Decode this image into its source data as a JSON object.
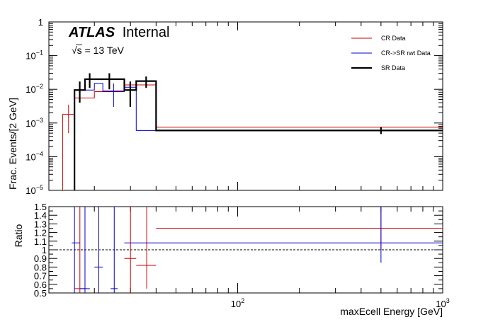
{
  "atlas_label": {
    "bold": "ATLAS",
    "normal": "Internal"
  },
  "energy_label": {
    "sqrt": "√s",
    "value": " = 13 TeV"
  },
  "legend": [
    {
      "label": "CR Data",
      "color": "#cc0000",
      "width": 1
    },
    {
      "label": "CR->SR rwt Data",
      "color": "#0000cc",
      "width": 1
    },
    {
      "label": "SR Data",
      "color": "#000000",
      "width": 2.2
    }
  ],
  "chart_data": [
    {
      "type": "line",
      "step": true,
      "title": "",
      "xlabel": "",
      "ylabel": "Frac. Events/[2 GeV]",
      "xscale": "log",
      "yscale": "log",
      "xlim": [
        12,
        1000
      ],
      "ylim": [
        1e-05,
        1
      ],
      "yticks": [
        {
          "v": 1e-05,
          "base": "10",
          "exp": "−5"
        },
        {
          "v": 0.0001,
          "base": "10",
          "exp": "−4"
        },
        {
          "v": 0.001,
          "base": "10",
          "exp": "−3"
        },
        {
          "v": 0.01,
          "base": "10",
          "exp": "−2"
        },
        {
          "v": 0.1,
          "base": "10",
          "exp": "−1"
        },
        {
          "v": 1,
          "base": "1",
          "exp": ""
        }
      ],
      "series": [
        {
          "name": "CR Data",
          "color": "#cc0000",
          "width": 1,
          "bins": [
            {
              "lo": 14,
              "hi": 16,
              "y": 0.0018,
              "err": [
                0.0005,
                0.0035
              ]
            },
            {
              "lo": 16,
              "hi": 20,
              "y": 0.0055,
              "err": null
            },
            {
              "lo": 20,
              "hi": 22,
              "y": 0.0085,
              "err": null
            },
            {
              "lo": 22,
              "hi": 28,
              "y": 0.009,
              "err": null
            },
            {
              "lo": 28,
              "hi": 40,
              "y": 0.0135,
              "err": null
            },
            {
              "lo": 40,
              "hi": 1000,
              "y": 0.00075,
              "err": null
            }
          ]
        },
        {
          "name": "CR->SR rwt Data",
          "color": "#0000cc",
          "width": 1,
          "bins": [
            {
              "lo": 16,
              "hi": 18,
              "y": 0.0095,
              "err": null
            },
            {
              "lo": 18,
              "hi": 20,
              "y": 0.0095,
              "err": null
            },
            {
              "lo": 20,
              "hi": 22,
              "y": 0.015,
              "err": null
            },
            {
              "lo": 22,
              "hi": 28,
              "y": 0.0085,
              "err": [
                0.003,
                0.015
              ]
            },
            {
              "lo": 28,
              "hi": 32,
              "y": 0.0115,
              "err": null
            },
            {
              "lo": 32,
              "hi": 1000,
              "y": 0.0006,
              "err": null
            }
          ]
        },
        {
          "name": "SR Data",
          "color": "#000000",
          "width": 2.2,
          "bins": [
            {
              "lo": 16,
              "hi": 18,
              "y": 0.0095,
              "err": [
                0.004,
                0.017
              ]
            },
            {
              "lo": 18,
              "hi": 20,
              "y": 0.02,
              "err": [
                0.011,
                0.03
              ]
            },
            {
              "lo": 20,
              "hi": 28,
              "y": 0.02,
              "err": [
                0.01,
                0.03
              ]
            },
            {
              "lo": 28,
              "hi": 32,
              "y": 0.0095,
              "err": [
                0.003,
                0.017
              ]
            },
            {
              "lo": 32,
              "hi": 40,
              "y": 0.0175,
              "err": [
                0.011,
                0.024
              ]
            },
            {
              "lo": 40,
              "hi": 1000,
              "y": 0.0006,
              "err": [
                0.00047,
                0.00075
              ]
            }
          ]
        }
      ]
    },
    {
      "type": "scatter",
      "title": "",
      "xlabel": "maxEcell Energy [GeV]",
      "ylabel": "Ratio",
      "xscale": "log",
      "xlim": [
        12,
        1000
      ],
      "ylim": [
        0.5,
        1.5
      ],
      "xticks": [
        {
          "v": 100,
          "base": "10",
          "exp": "2"
        },
        {
          "v": 1000,
          "base": "10",
          "exp": "3"
        }
      ],
      "yticks": [
        "0.5",
        "0.6",
        "0.7",
        "0.8",
        "0.9",
        "1",
        "1.1",
        "1.2",
        "1.3",
        "1.4",
        "1.5"
      ],
      "reference_line": 1,
      "series": [
        {
          "name": "CR Data",
          "color": "#cc0000",
          "points": [
            {
              "x": 17,
              "xlo": 16,
              "xhi": 18,
              "y": 0.55,
              "ylo": 0.5,
              "yhi": 1.5
            },
            {
              "x": 30,
              "xlo": 28,
              "xhi": 32,
              "y": 0.9,
              "ylo": 0.5,
              "yhi": 1.5
            },
            {
              "x": 36,
              "xlo": 32,
              "xhi": 40,
              "y": 0.82,
              "ylo": 0.55,
              "yhi": 1.5
            },
            {
              "x": 500,
              "xlo": 40,
              "xhi": 1000,
              "y": 1.25,
              "ylo": 1.0,
              "yhi": 1.5
            }
          ]
        },
        {
          "name": "CR->SR rwt Data",
          "color": "#0000cc",
          "points": [
            {
              "x": 16,
              "xlo": 15.5,
              "xhi": 17,
              "y": 1.08,
              "ylo": 0.5,
              "yhi": 1.5
            },
            {
              "x": 18,
              "xlo": 17,
              "xhi": 19,
              "y": 0.55,
              "ylo": 0.5,
              "yhi": 1.5
            },
            {
              "x": 21,
              "xlo": 20,
              "xhi": 22,
              "y": 0.8,
              "ylo": 0.5,
              "yhi": 1.5
            },
            {
              "x": 25,
              "xlo": 24,
              "xhi": 26,
              "y": 0.55,
              "ylo": 0.5,
              "yhi": 1.5
            },
            {
              "x": 500,
              "xlo": 28,
              "xhi": 1000,
              "y": 1.08,
              "ylo": 0.85,
              "yhi": 1.5
            }
          ]
        }
      ]
    }
  ]
}
